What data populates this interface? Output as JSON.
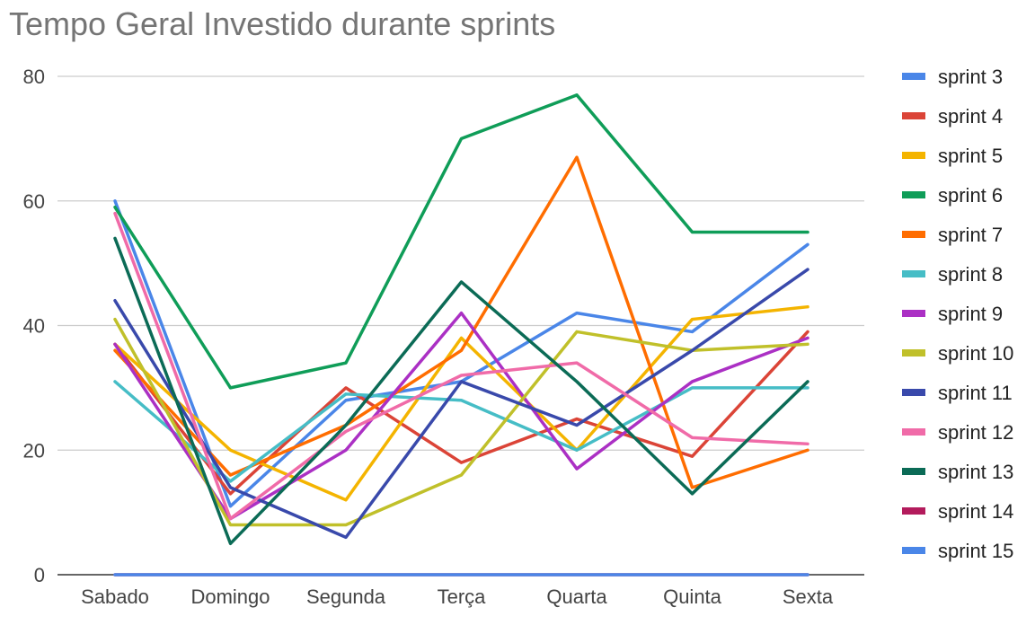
{
  "chart_data": {
    "type": "line",
    "title": "Tempo Geral Investido durante sprints",
    "categories": [
      "Sabado",
      "Domingo",
      "Segunda",
      "Terça",
      "Quarta",
      "Quinta",
      "Sexta"
    ],
    "ylim": [
      0,
      80
    ],
    "yticks": [
      0,
      20,
      40,
      60,
      80
    ],
    "grid": true,
    "legend_position": "right",
    "series": [
      {
        "name": "sprint 3",
        "color": "#4a86e8",
        "values": [
          60,
          11,
          28,
          31,
          42,
          39,
          53
        ]
      },
      {
        "name": "sprint 4",
        "color": "#db4437",
        "values": [
          37,
          13,
          30,
          18,
          25,
          19,
          39
        ]
      },
      {
        "name": "sprint 5",
        "color": "#f4b400",
        "values": [
          37,
          20,
          12,
          38,
          20,
          41,
          43
        ]
      },
      {
        "name": "sprint 6",
        "color": "#0f9d58",
        "values": [
          59,
          30,
          34,
          70,
          77,
          55,
          55
        ]
      },
      {
        "name": "sprint 7",
        "color": "#ff6d00",
        "values": [
          36,
          16,
          24,
          36,
          67,
          14,
          20
        ]
      },
      {
        "name": "sprint 8",
        "color": "#46bdc6",
        "values": [
          31,
          15,
          29,
          28,
          20,
          30,
          30
        ]
      },
      {
        "name": "sprint 9",
        "color": "#ab30c4",
        "values": [
          37,
          9,
          20,
          42,
          17,
          31,
          38
        ]
      },
      {
        "name": "sprint 10",
        "color": "#c0c02a",
        "values": [
          41,
          8,
          8,
          16,
          39,
          36,
          37
        ]
      },
      {
        "name": "sprint 11",
        "color": "#3949ab",
        "values": [
          44,
          14,
          6,
          31,
          24,
          36,
          49
        ]
      },
      {
        "name": "sprint 12",
        "color": "#f06ba8",
        "values": [
          58,
          9,
          23,
          32,
          34,
          22,
          21
        ]
      },
      {
        "name": "sprint 13",
        "color": "#0b6b56",
        "values": [
          54,
          5,
          24,
          47,
          31,
          13,
          31
        ]
      },
      {
        "name": "sprint 14",
        "color": "#b31b5c",
        "values": [
          0,
          0,
          0,
          0,
          0,
          0,
          0
        ]
      },
      {
        "name": "sprint 15",
        "color": "#4a86e8",
        "values": [
          0,
          0,
          0,
          0,
          0,
          0,
          0
        ]
      }
    ]
  }
}
